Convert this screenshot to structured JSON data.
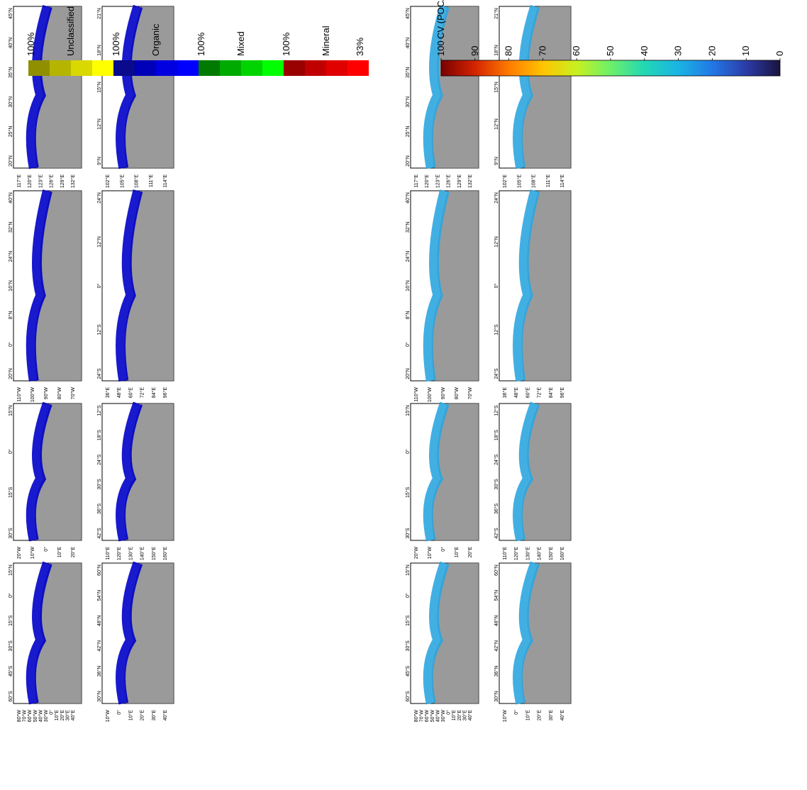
{
  "top_half": {
    "legend": {
      "groups": [
        {
          "name": "Unclassified",
          "top": "100%",
          "bottom": "",
          "colors": [
            "#8f8f00",
            "#b5b500",
            "#d9d900",
            "#ffff00"
          ]
        },
        {
          "name": "Organic",
          "top": "100%",
          "bottom": "",
          "colors": [
            "#0a0a8c",
            "#0000b8",
            "#0000e0",
            "#0000ff"
          ]
        },
        {
          "name": "Mixed",
          "top": "100%",
          "bottom": "",
          "colors": [
            "#007a00",
            "#00aa00",
            "#00d400",
            "#00ff00"
          ]
        },
        {
          "name": "Mineral",
          "top": "100%",
          "bottom": "33%",
          "colors": [
            "#990000",
            "#c00000",
            "#e00000",
            "#ff0000"
          ]
        }
      ]
    },
    "panels": [
      {
        "id": "east-china-sea-top",
        "lat_labels": [
          "45°N",
          "40°N",
          "35°N",
          "30°N",
          "25°N",
          "20°N"
        ],
        "lon_labels": [
          "117°E",
          "120°E",
          "123°E",
          "126°E",
          "129°E",
          "132°E"
        ]
      },
      {
        "id": "south-china-sea-top",
        "lat_labels": [
          "21°N",
          "18°N",
          "15°N",
          "12°N",
          "9°N"
        ],
        "lon_labels": [
          "102°E",
          "105°E",
          "108°E",
          "111°E",
          "114°E"
        ]
      },
      {
        "id": "gulf-mexico-top",
        "lat_labels": [
          "40°N",
          "32°N",
          "24°N",
          "16°N",
          "8°N",
          "0°",
          "20°N"
        ],
        "lon_labels": [
          "110°W",
          "100°W",
          "90°W",
          "80°W",
          "70°W"
        ]
      },
      {
        "id": "indian-ocean-top",
        "lat_labels": [
          "24°N",
          "12°N",
          "0°",
          "12°S",
          "24°S"
        ],
        "lon_labels": [
          "36°E",
          "48°E",
          "60°E",
          "72°E",
          "84°E",
          "96°E"
        ]
      },
      {
        "id": "south-america-top",
        "lat_labels": [
          "15°N",
          "0°",
          "15°S",
          "30°S"
        ],
        "lon_labels": [
          "20°W",
          "10°W",
          "0°",
          "10°E",
          "20°E"
        ]
      },
      {
        "id": "australia-top",
        "lat_labels": [
          "12°S",
          "18°S",
          "24°S",
          "30°S",
          "36°S",
          "42°S"
        ],
        "lon_labels": [
          "110°E",
          "120°E",
          "130°E",
          "140°E",
          "150°E",
          "160°E"
        ]
      },
      {
        "id": "south-atlantic-top",
        "lat_labels": [
          "15°N",
          "0°",
          "15°S",
          "30°S",
          "45°S",
          "60°S"
        ],
        "lon_labels": [
          "80°W",
          "70°W",
          "60°W",
          "50°W",
          "40°W",
          "30°W",
          "0°",
          "10°E",
          "20°E",
          "30°E",
          "40°E"
        ]
      },
      {
        "id": "europe-top",
        "lat_labels": [
          "60°N",
          "54°N",
          "48°N",
          "42°N",
          "36°N",
          "30°N"
        ],
        "lon_labels": [
          "10°W",
          "0°",
          "10°E",
          "20°E",
          "30°E",
          "40°E"
        ]
      }
    ]
  },
  "bottom_half": {
    "colorbar": {
      "title": "CV (POC/SPM) %",
      "ticks": [
        "100",
        "90",
        "80",
        "70",
        "60",
        "50",
        "40",
        "30",
        "20",
        "10",
        "0"
      ],
      "colors": [
        "#7a0000",
        "#d42400",
        "#ff7b00",
        "#ffc400",
        "#c8f020",
        "#6cf06a",
        "#22d8b4",
        "#1ab4e4",
        "#2278e6",
        "#2c3ca8",
        "#1a1240"
      ]
    },
    "panels": [
      {
        "id": "east-china-sea-bottom",
        "lat_labels": [
          "45°N",
          "40°N",
          "35°N",
          "30°N",
          "25°N",
          "20°N"
        ],
        "lon_labels": [
          "117°E",
          "120°E",
          "123°E",
          "126°E",
          "129°E",
          "132°E"
        ]
      },
      {
        "id": "south-china-sea-bottom",
        "lat_labels": [
          "21°N",
          "18°N",
          "15°N",
          "12°N",
          "9°N"
        ],
        "lon_labels": [
          "102°E",
          "105°E",
          "108°E",
          "111°E",
          "114°E"
        ]
      },
      {
        "id": "gulf-mexico-bottom",
        "lat_labels": [
          "40°N",
          "32°N",
          "24°N",
          "16°N",
          "8°N",
          "0°",
          "20°N"
        ],
        "lon_labels": [
          "110°W",
          "100°W",
          "90°W",
          "80°W",
          "70°W"
        ]
      },
      {
        "id": "indian-ocean-bottom",
        "lat_labels": [
          "24°N",
          "12°N",
          "0°",
          "12°S",
          "24°S"
        ],
        "lon_labels": [
          "36°E",
          "48°E",
          "60°E",
          "72°E",
          "84°E",
          "96°E"
        ]
      },
      {
        "id": "south-america-bottom",
        "lat_labels": [
          "15°N",
          "0°",
          "15°S",
          "30°S"
        ],
        "lon_labels": [
          "20°W",
          "10°W",
          "0°",
          "10°E",
          "20°E"
        ]
      },
      {
        "id": "australia-bottom",
        "lat_labels": [
          "12°S",
          "18°S",
          "24°S",
          "30°S",
          "36°S",
          "42°S"
        ],
        "lon_labels": [
          "110°E",
          "120°E",
          "130°E",
          "140°E",
          "150°E",
          "160°E"
        ]
      },
      {
        "id": "south-atlantic-bottom",
        "lat_labels": [
          "15°N",
          "0°",
          "15°S",
          "30°S",
          "45°S",
          "60°S"
        ],
        "lon_labels": [
          "80°W",
          "70°W",
          "60°W",
          "50°W",
          "40°W",
          "30°W",
          "0°",
          "10°E",
          "20°E",
          "30°E",
          "40°E"
        ]
      },
      {
        "id": "europe-bottom",
        "lat_labels": [
          "60°N",
          "54°N",
          "48°N",
          "42°N",
          "36°N",
          "30°N"
        ],
        "lon_labels": [
          "10°W",
          "0°",
          "10°E",
          "20°E",
          "30°E",
          "40°E"
        ]
      }
    ]
  },
  "colors": {
    "land": "#9a9a9a",
    "ocean": "#ffffff",
    "frame": "#000000",
    "top_ocean_fill": "#0000c8",
    "bottom_ocean_fill": "#2ea6e0"
  }
}
